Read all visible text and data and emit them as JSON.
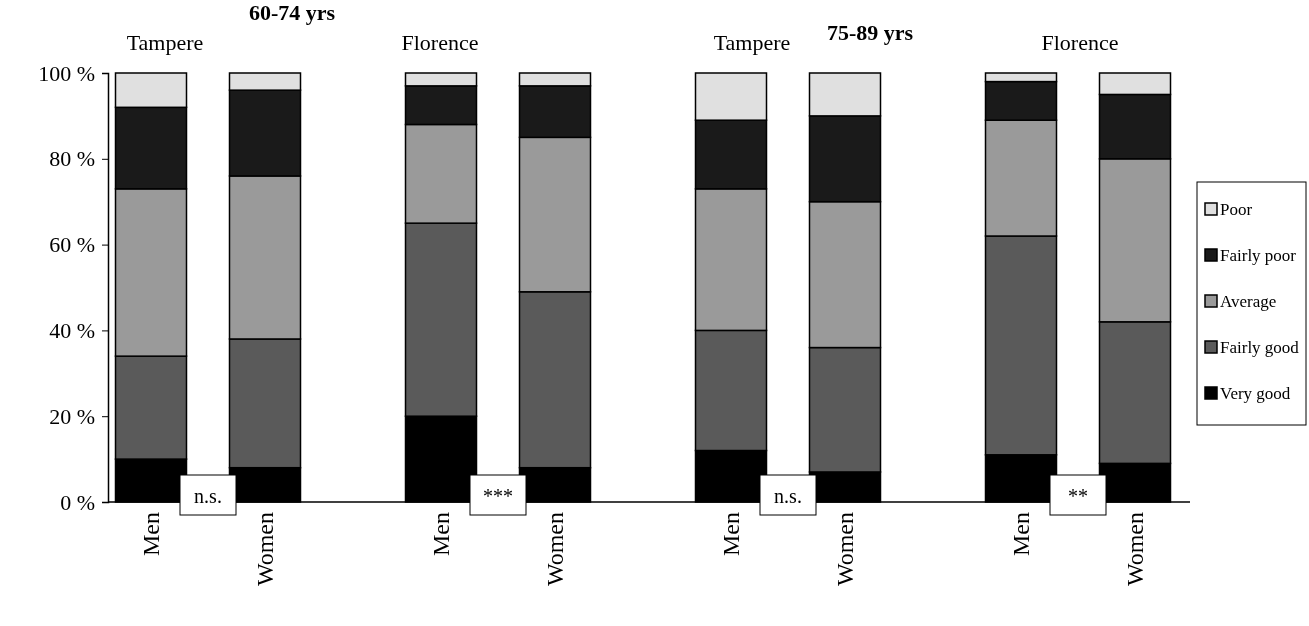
{
  "chart_data": {
    "type": "bar",
    "stacked": true,
    "categories": [
      "Men",
      "Women",
      "Men",
      "Women",
      "Men",
      "Women",
      "Men",
      "Women"
    ],
    "series": [
      {
        "name": "Very good",
        "color": "#000000",
        "values": [
          10,
          8,
          20,
          8,
          12,
          7,
          11,
          9
        ]
      },
      {
        "name": "Fairly good",
        "color": "#5a5a5a",
        "values": [
          24,
          30,
          45,
          41,
          28,
          29,
          51,
          33
        ]
      },
      {
        "name": "Average",
        "color": "#9a9a9a",
        "values": [
          39,
          38,
          23,
          36,
          33,
          34,
          27,
          38
        ]
      },
      {
        "name": "Fairly poor",
        "color": "#1a1a1a",
        "values": [
          19,
          20,
          9,
          12,
          16,
          20,
          9,
          15
        ]
      },
      {
        "name": "Poor",
        "color": "#e0e0e0",
        "values": [
          8,
          4,
          3,
          3,
          11,
          10,
          2,
          5
        ]
      }
    ],
    "ylim": [
      0,
      100
    ],
    "yticks": [
      {
        "value": 0,
        "label": "0 %"
      },
      {
        "value": 20,
        "label": "20 %"
      },
      {
        "value": 40,
        "label": "40 %"
      },
      {
        "value": 60,
        "label": "60 %"
      },
      {
        "value": 80,
        "label": "80 %"
      },
      {
        "value": 100,
        "label": "100 %"
      }
    ],
    "grid": false,
    "legend": "right",
    "annotations": [
      "60-74 yrs",
      "Tampere",
      "Florence",
      "75-89 yrs",
      "Tampere",
      "Florence",
      "n.s.",
      "***",
      "n.s.",
      "**"
    ]
  }
}
